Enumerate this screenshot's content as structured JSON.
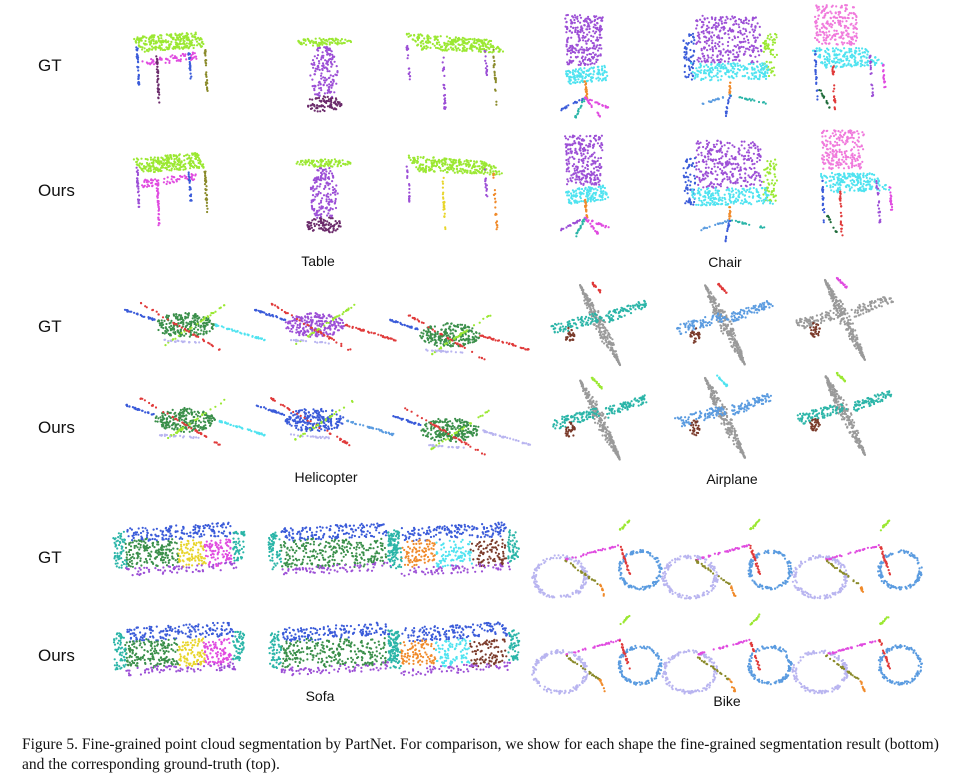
{
  "figure": {
    "row_labels": {
      "gt": "GT",
      "ours": "Ours"
    },
    "categories": {
      "table": "Table",
      "chair": "Chair",
      "helicopter": "Helicopter",
      "airplane": "Airplane",
      "sofa": "Sofa",
      "bike": "Bike"
    },
    "caption": "Figure 5. Fine-grained point cloud segmentation by PartNet. For comparison, we show for each shape the fine-grained segmentation result (bottom) and the corresponding ground-truth (top)."
  },
  "colors": {
    "lime": "#9be832",
    "magenta": "#e04be0",
    "purple": "#9c4fd6",
    "darkpurple": "#6b2b6b",
    "cyan": "#4fe3f0",
    "teal": "#2bb5a8",
    "blue": "#3a5bd9",
    "skyblue": "#5a9be0",
    "lavender": "#b9b5f0",
    "green": "#3a8f4a",
    "darkgreen": "#1f6b3a",
    "red": "#e03a3a",
    "orange": "#f08a2a",
    "yellow": "#e8d52a",
    "olive": "#8a8a2a",
    "gray": "#9a9a9a",
    "pink": "#f07adc",
    "brown": "#7a3a2a"
  }
}
